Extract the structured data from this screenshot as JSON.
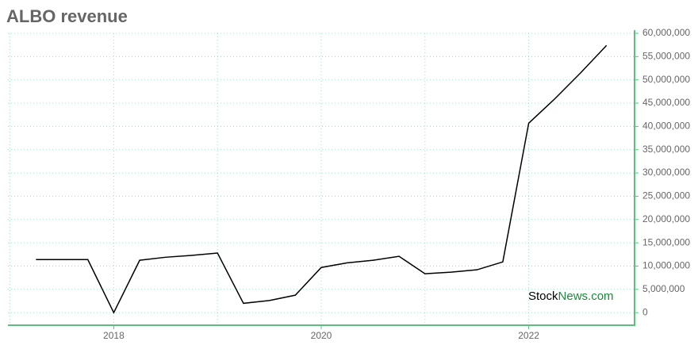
{
  "chart_data": {
    "type": "line",
    "title": "ALBO revenue",
    "x": [
      2017.25,
      2017.75,
      2018,
      2018.25,
      2018.5,
      2018.75,
      2019,
      2019.25,
      2019.5,
      2019.75,
      2020,
      2020.25,
      2020.5,
      2020.75,
      2021,
      2021.25,
      2021.5,
      2021.75,
      2022,
      2022.25,
      2022.5,
      2022.75
    ],
    "series": [
      {
        "name": "Revenue",
        "color": "#000000",
        "values": [
          11400000,
          11400000,
          0,
          11250000,
          11900000,
          12300000,
          12800000,
          2000000,
          2600000,
          3750000,
          9700000,
          10700000,
          11250000,
          12100000,
          8350000,
          8700000,
          9200000,
          10900000,
          40700000,
          45900000,
          51500000,
          57400000
        ]
      }
    ],
    "xlim": [
      2016.98,
      2023.02
    ],
    "xticks": [
      2018,
      2020,
      2022
    ],
    "xminorticks": [
      2017,
      2019,
      2021
    ],
    "ylim": [
      -2700000,
      60000000
    ],
    "yticks": [
      {
        "value": 0,
        "label": "0"
      },
      {
        "value": 5000000,
        "label": "5,000,000"
      },
      {
        "value": 10000000,
        "label": "10,000,000"
      },
      {
        "value": 15000000,
        "label": "15,000,000"
      },
      {
        "value": 20000000,
        "label": "20,000,000"
      },
      {
        "value": 25000000,
        "label": "25,000,000"
      },
      {
        "value": 30000000,
        "label": "30,000,000"
      },
      {
        "value": 35000000,
        "label": "35,000,000"
      },
      {
        "value": 40000000,
        "label": "40,000,000"
      },
      {
        "value": 45000000,
        "label": "45,000,000"
      },
      {
        "value": 50000000,
        "label": "50,000,000"
      },
      {
        "value": 55000000,
        "label": "55,000,000"
      },
      {
        "value": 60000000,
        "label": "60,000,000"
      }
    ],
    "grid": true,
    "axis_color": "#5cbf7f",
    "grid_color": "#a8dcc8",
    "watermark": {
      "first": "Stock",
      "second": "News.com",
      "second_color": "#1a8a3a"
    }
  }
}
